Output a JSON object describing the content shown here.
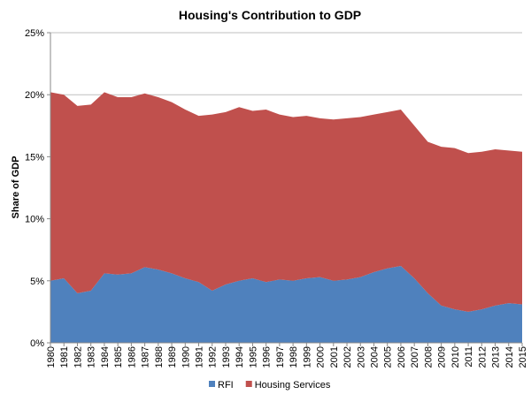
{
  "chart_data": {
    "type": "area",
    "stacked": true,
    "title": "Housing's Contribution to GDP",
    "xlabel": "",
    "ylabel": "Share of GDP",
    "ylim": [
      0,
      25
    ],
    "yticks": [
      "0%",
      "5%",
      "10%",
      "15%",
      "20%",
      "25%"
    ],
    "grid": true,
    "legend": "bottom",
    "x": [
      1980,
      1981,
      1982,
      1983,
      1984,
      1985,
      1986,
      1987,
      1988,
      1989,
      1990,
      1991,
      1992,
      1993,
      1994,
      1995,
      1996,
      1997,
      1998,
      1999,
      2000,
      2001,
      2002,
      2003,
      2004,
      2005,
      2006,
      2007,
      2008,
      2009,
      2010,
      2011,
      2012,
      2013,
      2014,
      2015
    ],
    "series": [
      {
        "name": "RFI",
        "color": "#4f81bd",
        "values": [
          5.0,
          5.2,
          4.0,
          4.2,
          5.6,
          5.5,
          5.6,
          6.1,
          5.9,
          5.6,
          5.2,
          4.9,
          4.2,
          4.7,
          5.0,
          5.2,
          4.9,
          5.1,
          5.0,
          5.2,
          5.3,
          5.0,
          5.1,
          5.3,
          5.7,
          6.0,
          6.2,
          5.2,
          4.0,
          3.0,
          2.7,
          2.5,
          2.7,
          3.0,
          3.2,
          3.1
        ]
      },
      {
        "name": "Housing Services",
        "color": "#c0504d",
        "values": [
          15.2,
          14.8,
          15.1,
          15.0,
          14.6,
          14.3,
          14.2,
          14.0,
          13.9,
          13.8,
          13.6,
          13.4,
          14.2,
          13.9,
          14.0,
          13.5,
          13.9,
          13.3,
          13.2,
          13.1,
          12.8,
          13.0,
          13.0,
          12.9,
          12.7,
          12.6,
          12.6,
          12.3,
          12.2,
          12.8,
          13.0,
          12.8,
          12.7,
          12.6,
          12.3,
          12.3
        ]
      }
    ]
  }
}
